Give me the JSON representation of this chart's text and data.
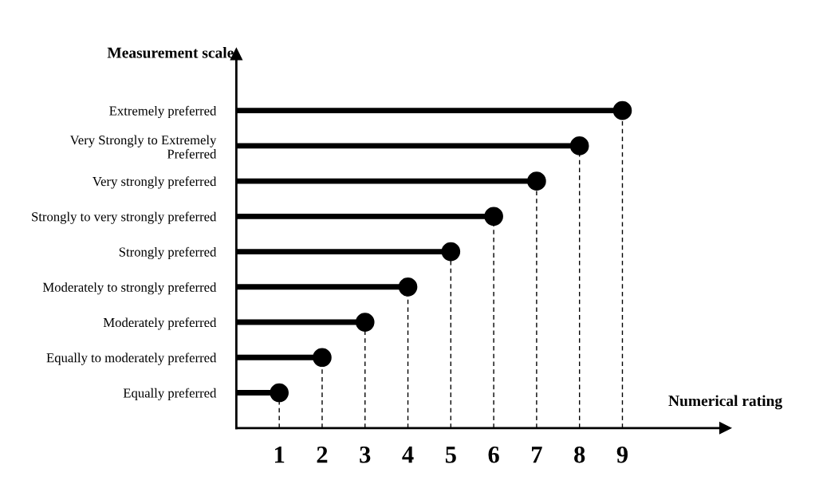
{
  "chart_data": {
    "type": "lollipop",
    "orientation": "horizontal",
    "xlabel": "Numerical rating",
    "ylabel": "Measurement scale",
    "categories": [
      "Extremely preferred",
      "Very Strongly to Extremely\nPreferred",
      "Very strongly preferred",
      "Strongly to very strongly preferred",
      "Strongly preferred",
      "Moderately to strongly preferred",
      "Moderately preferred",
      "Equally to moderately preferred",
      "Equally preferred"
    ],
    "values": [
      9,
      8,
      7,
      6,
      5,
      4,
      3,
      2,
      1
    ],
    "color": "#000000",
    "marker": "circle",
    "grid": false,
    "xlim": [
      0,
      11.4
    ],
    "xticks": [
      1,
      2,
      3,
      4,
      5,
      6,
      7,
      8,
      9
    ],
    "ref_lines": [
      {
        "axis": "x",
        "value": 1,
        "line_style": "dashed"
      },
      {
        "axis": "x",
        "value": 2,
        "line_style": "dashed"
      },
      {
        "axis": "x",
        "value": 3,
        "line_style": "dashed"
      },
      {
        "axis": "x",
        "value": 4,
        "line_style": "dashed"
      },
      {
        "axis": "x",
        "value": 5,
        "line_style": "dashed"
      },
      {
        "axis": "x",
        "value": 6,
        "line_style": "dashed"
      },
      {
        "axis": "x",
        "value": 7,
        "line_style": "dashed"
      },
      {
        "axis": "x",
        "value": 8,
        "line_style": "dashed"
      },
      {
        "axis": "x",
        "value": 9,
        "line_style": "dashed"
      }
    ]
  }
}
